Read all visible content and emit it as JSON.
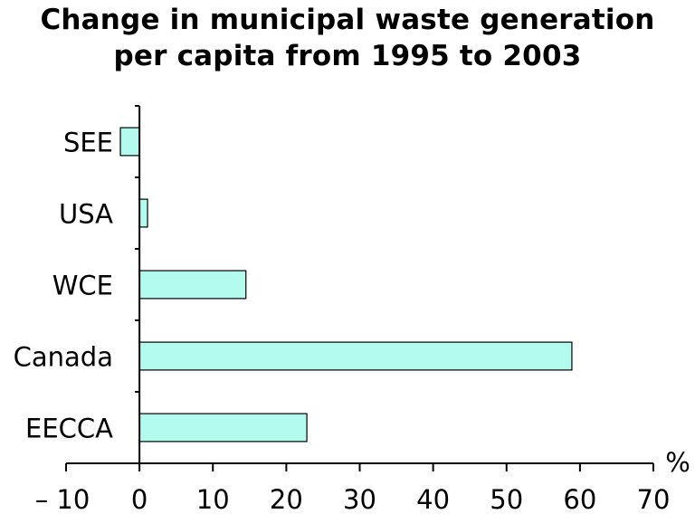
{
  "chart_data": {
    "type": "bar",
    "orientation": "horizontal",
    "title": "Change in municipal waste generation per capita from 1995 to 2003",
    "title_lines": [
      "Change in municipal waste generation",
      "per capita from 1995 to 2003"
    ],
    "categories": [
      "SEE",
      "USA",
      "WCE",
      "Canada",
      "EECCA"
    ],
    "values": [
      -2.6,
      1.1,
      14.5,
      58.9,
      22.8
    ],
    "xlabel": "%",
    "ylabel": "",
    "xlim": [
      -10,
      70
    ],
    "x_ticks": [
      -10,
      0,
      10,
      20,
      30,
      40,
      50,
      60,
      70
    ],
    "x_tick_labels": [
      "– 10",
      "0",
      "10",
      "20",
      "30",
      "40",
      "50",
      "60",
      "70"
    ],
    "grid": false,
    "legend": "none",
    "bar_color": "#b3fbee",
    "bar_edge_color": "#000000"
  }
}
